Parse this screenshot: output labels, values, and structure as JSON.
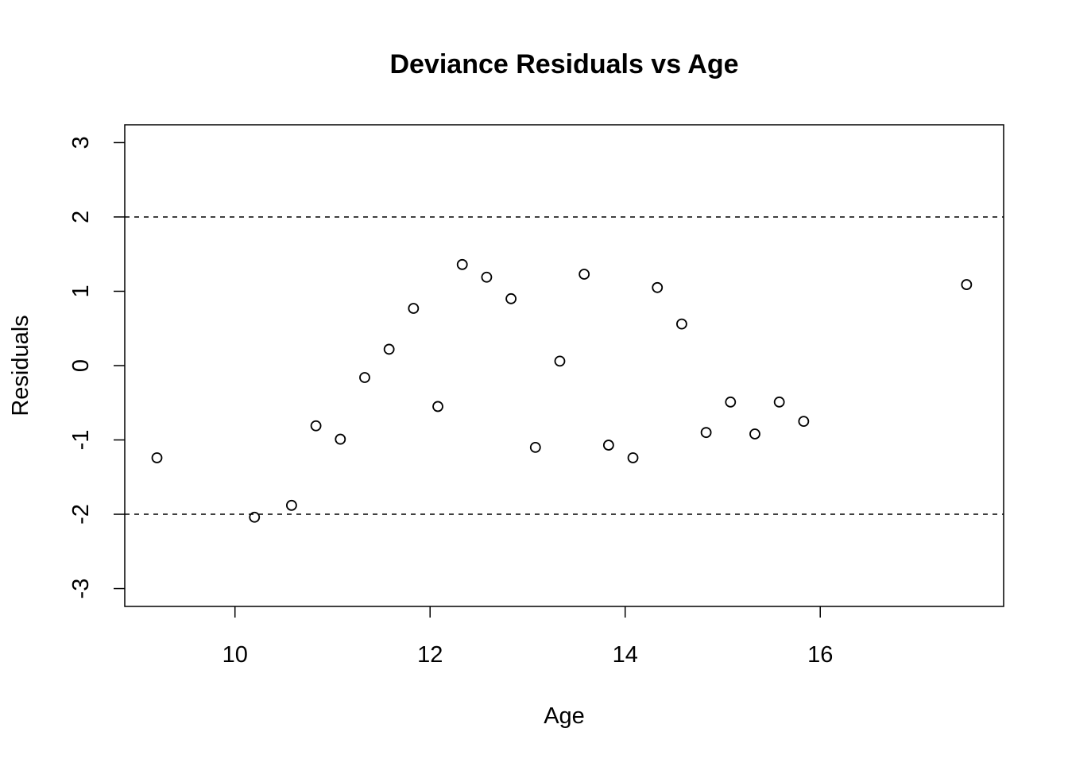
{
  "chart_data": {
    "type": "scatter",
    "title": "Deviance Residuals vs Age",
    "xlabel": "Age",
    "ylabel": "Residuals",
    "xlim": [
      8.87,
      17.88
    ],
    "ylim": [
      -3.24,
      3.24
    ],
    "xticks": [
      10,
      12,
      14,
      16
    ],
    "yticks": [
      -3,
      -2,
      -1,
      0,
      1,
      2,
      3
    ],
    "xtick_labels": [
      "10",
      "12",
      "14",
      "16"
    ],
    "ytick_labels": [
      "-3",
      "-2",
      "-1",
      "0",
      "1",
      "2",
      "3"
    ],
    "reference_lines": [
      2,
      -2
    ],
    "grid": false,
    "point_style": "open-circle",
    "color": "#000000",
    "x": [
      9.2,
      10.2,
      10.58,
      10.83,
      11.08,
      11.33,
      11.58,
      11.83,
      12.08,
      12.33,
      12.58,
      12.83,
      13.08,
      13.33,
      13.58,
      13.83,
      14.08,
      14.33,
      14.58,
      14.83,
      15.08,
      15.33,
      15.58,
      15.83,
      17.5
    ],
    "y": [
      -1.24,
      -2.04,
      -1.88,
      -0.81,
      -0.99,
      -0.16,
      0.22,
      0.77,
      -0.55,
      1.36,
      1.19,
      0.9,
      -1.1,
      0.06,
      1.23,
      -1.07,
      -1.24,
      1.05,
      0.56,
      -0.9,
      -0.49,
      -0.92,
      -0.49,
      -0.75,
      1.09
    ]
  }
}
